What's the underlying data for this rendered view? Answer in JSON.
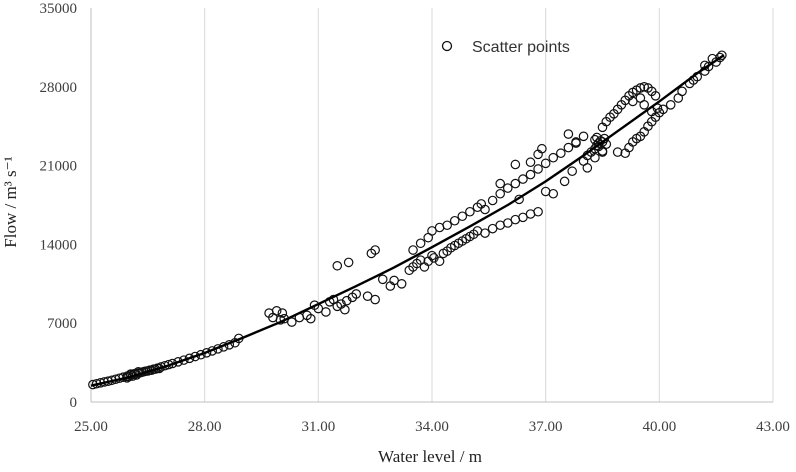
{
  "chart_data": {
    "type": "scatter",
    "title": "",
    "xlabel": "Water level / m",
    "ylabel": "Flow / m³ s⁻¹",
    "xlim": [
      25,
      43
    ],
    "ylim": [
      0,
      35000
    ],
    "x_ticks": [
      "25.00",
      "28.00",
      "31.00",
      "34.00",
      "37.00",
      "40.00",
      "43.00"
    ],
    "y_ticks": [
      "0",
      "7000",
      "14000",
      "21000",
      "28000",
      "35000"
    ],
    "grid": "vertical",
    "legend": {
      "position": "top-center",
      "entries": [
        "Scatter points"
      ]
    },
    "series": [
      {
        "name": "Scatter points",
        "kind": "scatter",
        "marker": "open-circle",
        "points": [
          [
            25.05,
            1550
          ],
          [
            25.15,
            1620
          ],
          [
            25.25,
            1700
          ],
          [
            25.35,
            1780
          ],
          [
            25.45,
            1850
          ],
          [
            25.55,
            1930
          ],
          [
            25.65,
            2020
          ],
          [
            25.75,
            2110
          ],
          [
            25.85,
            2200
          ],
          [
            25.95,
            2290
          ],
          [
            26.05,
            2380
          ],
          [
            26.15,
            2470
          ],
          [
            26.25,
            2560
          ],
          [
            26.35,
            2650
          ],
          [
            26.45,
            2740
          ],
          [
            26.55,
            2830
          ],
          [
            26.65,
            2920
          ],
          [
            26.75,
            3010
          ],
          [
            26.85,
            3120
          ],
          [
            26.95,
            3220
          ],
          [
            27.05,
            3320
          ],
          [
            27.15,
            3420
          ],
          [
            27.3,
            3570
          ],
          [
            27.45,
            3720
          ],
          [
            27.6,
            3880
          ],
          [
            27.75,
            4040
          ],
          [
            27.9,
            4200
          ],
          [
            28.05,
            4370
          ],
          [
            28.2,
            4540
          ],
          [
            28.35,
            4720
          ],
          [
            28.5,
            4900
          ],
          [
            28.65,
            5080
          ],
          [
            28.8,
            5260
          ],
          [
            26.0,
            2250
          ],
          [
            26.1,
            2300
          ],
          [
            26.2,
            2400
          ],
          [
            26.05,
            2480
          ],
          [
            26.15,
            2520
          ],
          [
            26.3,
            2600
          ],
          [
            26.4,
            2700
          ],
          [
            26.5,
            2760
          ],
          [
            26.6,
            2820
          ],
          [
            26.7,
            2920
          ],
          [
            26.8,
            2980
          ],
          [
            25.95,
            2150
          ],
          [
            26.25,
            2680
          ],
          [
            28.9,
            5650
          ],
          [
            29.7,
            7900
          ],
          [
            29.8,
            7500
          ],
          [
            29.9,
            8100
          ],
          [
            30.0,
            7300
          ],
          [
            30.05,
            7900
          ],
          [
            30.1,
            7400
          ],
          [
            30.3,
            7100
          ],
          [
            30.5,
            7500
          ],
          [
            30.7,
            7700
          ],
          [
            30.8,
            7400
          ],
          [
            30.9,
            8600
          ],
          [
            31.0,
            8300
          ],
          [
            31.2,
            8000
          ],
          [
            31.3,
            8900
          ],
          [
            31.4,
            9100
          ],
          [
            31.5,
            8500
          ],
          [
            31.6,
            8700
          ],
          [
            31.7,
            8200
          ],
          [
            31.75,
            9000
          ],
          [
            31.9,
            9300
          ],
          [
            32.0,
            9600
          ],
          [
            32.3,
            9400
          ],
          [
            32.5,
            9100
          ],
          [
            31.5,
            12100
          ],
          [
            31.8,
            12400
          ],
          [
            32.4,
            13200
          ],
          [
            32.5,
            13500
          ],
          [
            32.7,
            10900
          ],
          [
            32.9,
            10300
          ],
          [
            33.0,
            10800
          ],
          [
            33.2,
            10500
          ],
          [
            33.4,
            11700
          ],
          [
            33.5,
            12000
          ],
          [
            33.6,
            12300
          ],
          [
            33.7,
            12600
          ],
          [
            33.8,
            12000
          ],
          [
            33.9,
            12500
          ],
          [
            34.0,
            13000
          ],
          [
            34.05,
            12800
          ],
          [
            34.2,
            12500
          ],
          [
            34.3,
            13200
          ],
          [
            34.4,
            13400
          ],
          [
            34.5,
            13700
          ],
          [
            34.6,
            13900
          ],
          [
            34.7,
            14100
          ],
          [
            34.8,
            14300
          ],
          [
            34.9,
            14500
          ],
          [
            35.0,
            14700
          ],
          [
            35.1,
            14900
          ],
          [
            35.2,
            15200
          ],
          [
            35.4,
            15000
          ],
          [
            35.6,
            15400
          ],
          [
            35.8,
            15700
          ],
          [
            36.0,
            15900
          ],
          [
            36.2,
            16200
          ],
          [
            36.4,
            16400
          ],
          [
            36.6,
            16700
          ],
          [
            36.8,
            16900
          ],
          [
            33.5,
            13500
          ],
          [
            33.7,
            14100
          ],
          [
            33.9,
            14600
          ],
          [
            34.0,
            15200
          ],
          [
            34.2,
            15500
          ],
          [
            34.4,
            15700
          ],
          [
            34.6,
            16100
          ],
          [
            34.8,
            16500
          ],
          [
            35.0,
            16900
          ],
          [
            35.2,
            17300
          ],
          [
            35.3,
            17600
          ],
          [
            35.4,
            17100
          ],
          [
            35.6,
            17900
          ],
          [
            35.8,
            18500
          ],
          [
            36.0,
            19000
          ],
          [
            36.2,
            19400
          ],
          [
            36.4,
            19800
          ],
          [
            36.6,
            20200
          ],
          [
            36.8,
            20700
          ],
          [
            37.0,
            21200
          ],
          [
            37.2,
            21700
          ],
          [
            37.4,
            22100
          ],
          [
            37.6,
            22600
          ],
          [
            37.8,
            23100
          ],
          [
            38.0,
            23600
          ],
          [
            35.8,
            19400
          ],
          [
            36.3,
            18000
          ],
          [
            36.2,
            21100
          ],
          [
            36.6,
            21300
          ],
          [
            36.8,
            22000
          ],
          [
            36.9,
            22500
          ],
          [
            37.0,
            18700
          ],
          [
            37.2,
            18500
          ],
          [
            37.5,
            19600
          ],
          [
            37.7,
            20500
          ],
          [
            37.6,
            23800
          ],
          [
            37.8,
            23000
          ],
          [
            38.0,
            21400
          ],
          [
            38.1,
            20800
          ],
          [
            38.3,
            21700
          ],
          [
            38.5,
            22200
          ],
          [
            38.1,
            21900
          ],
          [
            38.2,
            22200
          ],
          [
            38.3,
            22500
          ],
          [
            38.35,
            22800
          ],
          [
            38.4,
            23000
          ],
          [
            38.45,
            23200
          ],
          [
            38.5,
            23100
          ],
          [
            38.55,
            23400
          ],
          [
            38.3,
            23300
          ],
          [
            38.4,
            22700
          ],
          [
            38.5,
            22300
          ],
          [
            38.6,
            22900
          ],
          [
            38.35,
            23500
          ],
          [
            38.5,
            24400
          ],
          [
            38.6,
            24900
          ],
          [
            38.7,
            25300
          ],
          [
            38.8,
            25600
          ],
          [
            38.9,
            26000
          ],
          [
            39.0,
            26400
          ],
          [
            39.1,
            26800
          ],
          [
            39.2,
            27200
          ],
          [
            39.3,
            27500
          ],
          [
            39.4,
            27700
          ],
          [
            39.5,
            27900
          ],
          [
            39.6,
            28000
          ],
          [
            39.7,
            27900
          ],
          [
            39.8,
            27600
          ],
          [
            39.9,
            27200
          ],
          [
            38.9,
            22200
          ],
          [
            39.1,
            22100
          ],
          [
            39.2,
            22600
          ],
          [
            39.3,
            23100
          ],
          [
            39.4,
            23400
          ],
          [
            39.5,
            23600
          ],
          [
            39.6,
            24000
          ],
          [
            39.7,
            24500
          ],
          [
            39.8,
            24900
          ],
          [
            39.9,
            25300
          ],
          [
            40.0,
            25700
          ],
          [
            39.6,
            26400
          ],
          [
            39.8,
            25800
          ],
          [
            39.95,
            26100
          ],
          [
            39.5,
            27000
          ],
          [
            39.3,
            26700
          ],
          [
            40.1,
            26000
          ],
          [
            40.3,
            26400
          ],
          [
            40.5,
            27000
          ],
          [
            40.6,
            27600
          ],
          [
            40.8,
            28300
          ],
          [
            41.0,
            28900
          ],
          [
            41.2,
            29400
          ],
          [
            41.3,
            29800
          ],
          [
            41.5,
            30200
          ],
          [
            41.6,
            30600
          ],
          [
            41.65,
            30800
          ],
          [
            41.4,
            30500
          ],
          [
            41.2,
            29900
          ],
          [
            40.9,
            28600
          ]
        ]
      },
      {
        "name": "",
        "kind": "fit-line",
        "points": [
          [
            25.0,
            1450
          ],
          [
            26.0,
            2200
          ],
          [
            27.0,
            3200
          ],
          [
            28.0,
            4350
          ],
          [
            29.0,
            5700
          ],
          [
            30.0,
            7100
          ],
          [
            31.0,
            8700
          ],
          [
            32.0,
            10300
          ],
          [
            33.0,
            11950
          ],
          [
            34.0,
            13750
          ],
          [
            35.0,
            15600
          ],
          [
            36.0,
            17500
          ],
          [
            37.0,
            19600
          ],
          [
            38.0,
            21900
          ],
          [
            39.0,
            24300
          ],
          [
            40.0,
            26700
          ],
          [
            41.0,
            29200
          ],
          [
            41.7,
            30800
          ]
        ]
      }
    ]
  }
}
